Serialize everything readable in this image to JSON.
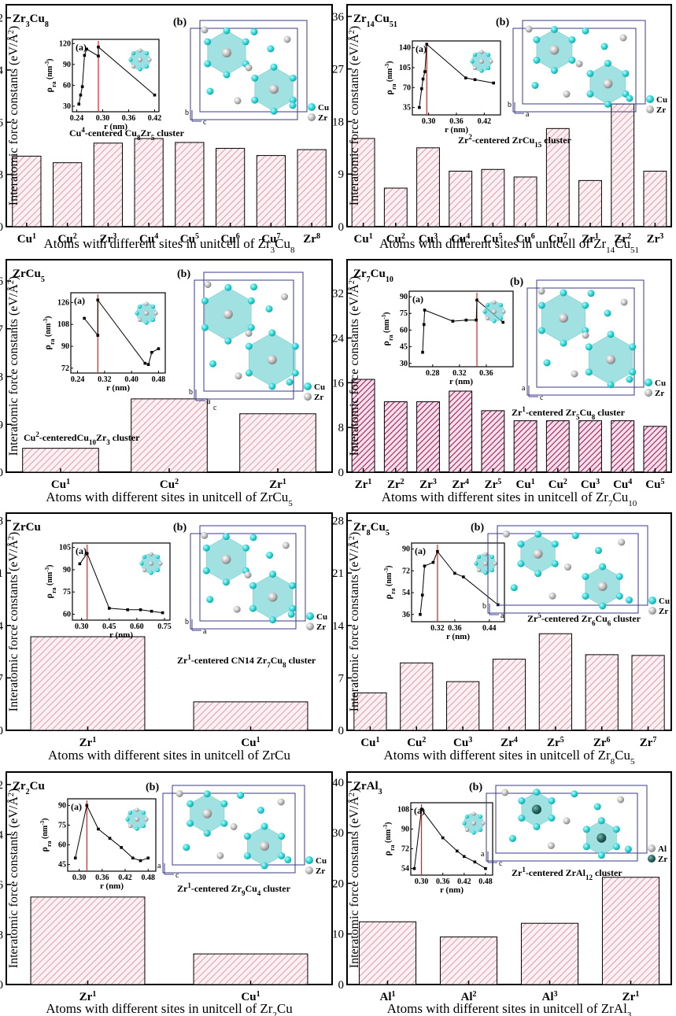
{
  "chart_data": [
    {
      "type": "bar",
      "compound_label": [
        "Zr",
        "3",
        "Cu",
        "8"
      ],
      "categories": [
        [
          "Cu",
          "1"
        ],
        [
          "Cu",
          "2"
        ],
        [
          "Zr",
          "3"
        ],
        [
          "Cu",
          "4"
        ],
        [
          "Cu",
          "5"
        ],
        [
          "Cu",
          "6"
        ],
        [
          "Cu",
          "7"
        ],
        [
          "Zr",
          "8"
        ]
      ],
      "values": [
        10.8,
        9.8,
        12.8,
        13.5,
        12.9,
        12.0,
        10.9,
        11.8
      ],
      "ylim": [
        0,
        34
      ],
      "yticks": [
        0,
        8,
        16,
        24,
        32
      ],
      "xlabel": [
        "Atoms with different sites in unitcell of Zr",
        "3",
        "Cu",
        "8"
      ],
      "bar_style": "light",
      "inset": {
        "label": "(a)",
        "xlabel": "r (nm)",
        "xticks": [
          0.24,
          0.3,
          0.36,
          0.42
        ],
        "xlim": [
          0.23,
          0.43
        ],
        "yticks": [
          30,
          60,
          90,
          120
        ],
        "ylim": [
          22,
          126
        ],
        "redline": 0.29,
        "points": [
          [
            0.245,
            33
          ],
          [
            0.249,
            46
          ],
          [
            0.253,
            58
          ],
          [
            0.258,
            103
          ],
          [
            0.263,
            112
          ],
          [
            0.29,
            102
          ],
          [
            0.29,
            115
          ],
          [
            0.42,
            46
          ]
        ]
      },
      "structure": {
        "label": "(b)",
        "axes": [
          "b",
          "c"
        ],
        "legend": [
          "Cu",
          "Zr"
        ]
      },
      "cluster_label": [
        "Cu",
        "4",
        "-centered Cu",
        "8",
        "Zr",
        "5",
        " cluster"
      ]
    },
    {
      "type": "bar",
      "compound_label": [
        "Zr",
        "14",
        "Cu",
        "51"
      ],
      "categories": [
        [
          "Cu",
          "1"
        ],
        [
          "Cu",
          "2"
        ],
        [
          "Cu",
          "3"
        ],
        [
          "Cu",
          "4"
        ],
        [
          "Cu",
          "5"
        ],
        [
          "Cu",
          "6"
        ],
        [
          "Cu",
          "7"
        ],
        [
          "Zr",
          "1"
        ],
        [
          "Zr",
          "2"
        ],
        [
          "Zr",
          "3"
        ]
      ],
      "values": [
        15.1,
        6.6,
        13.5,
        9.5,
        9.8,
        8.5,
        16.8,
        7.9,
        21.0,
        9.5
      ],
      "ylim": [
        0,
        38
      ],
      "yticks": [
        0,
        9,
        18,
        27,
        36
      ],
      "xlabel": [
        "Atoms with different sites in unitcell of Zr",
        "14",
        "Cu",
        "51"
      ],
      "bar_style": "light",
      "inset": {
        "label": "(a)",
        "xlabel": "r (nm)",
        "xticks": [
          0.3,
          0.36,
          0.42
        ],
        "xlim": [
          0.265,
          0.455
        ],
        "yticks": [
          35,
          70,
          105,
          140
        ],
        "ylim": [
          22,
          152
        ],
        "redline": 0.296,
        "points": [
          [
            0.28,
            35
          ],
          [
            0.285,
            68
          ],
          [
            0.288,
            85
          ],
          [
            0.292,
            98
          ],
          [
            0.296,
            146
          ],
          [
            0.38,
            87
          ],
          [
            0.4,
            84
          ],
          [
            0.44,
            78
          ]
        ]
      },
      "structure": {
        "label": "(b)",
        "axes": [
          "b",
          "a"
        ],
        "legend": [
          "Cu",
          "Zr"
        ]
      },
      "cluster_label": [
        "Zr",
        "2",
        "-centered ZrCu",
        "15",
        " cluster"
      ]
    },
    {
      "type": "bar",
      "compound_label": [
        "ZrCu",
        "5"
      ],
      "categories": [
        [
          "Cu",
          "1"
        ],
        [
          "Cu",
          "2"
        ],
        [
          "Zr",
          "1"
        ]
      ],
      "values": [
        4.5,
        13.8,
        11.0
      ],
      "ylim": [
        0,
        40
      ],
      "yticks": [
        0,
        9,
        18,
        27,
        36
      ],
      "xlabel": [
        "Atoms with different sites in unitcell of ZrCu",
        "5"
      ],
      "bar_style": "light",
      "inset": {
        "label": "(a)",
        "xlabel": "r (nm)",
        "xticks": [
          0.24,
          0.32,
          0.4,
          0.48
        ],
        "xlim": [
          0.22,
          0.5
        ],
        "yticks": [
          72,
          90,
          108,
          126
        ],
        "ylim": [
          68,
          134
        ],
        "redline": 0.3,
        "points": [
          [
            0.26,
            113
          ],
          [
            0.3,
            99
          ],
          [
            0.3,
            128
          ],
          [
            0.44,
            76
          ],
          [
            0.45,
            75
          ],
          [
            0.46,
            85
          ],
          [
            0.48,
            88
          ]
        ]
      },
      "structure": {
        "label": "(b)",
        "axes": [
          "b",
          "a",
          "c"
        ],
        "legend": [
          "Cu",
          "Zr"
        ]
      },
      "cluster_label": [
        "Cu",
        "2",
        "-centeredCu",
        "10",
        "Zr",
        "3",
        " cluster"
      ]
    },
    {
      "type": "bar",
      "compound_label": [
        "Zr",
        "7",
        "Cu",
        "10"
      ],
      "categories": [
        [
          "Zr",
          "1"
        ],
        [
          "Zr",
          "2"
        ],
        [
          "Zr",
          "3"
        ],
        [
          "Zr",
          "4"
        ],
        [
          "Zr",
          "5"
        ],
        [
          "Cu",
          "1"
        ],
        [
          "Cu",
          "2"
        ],
        [
          "Cu",
          "3"
        ],
        [
          "Cu",
          "4"
        ],
        [
          "Cu",
          "5"
        ]
      ],
      "values": [
        16.6,
        12.6,
        12.6,
        14.5,
        11.0,
        9.2,
        9.2,
        9.2,
        9.2,
        8.2
      ],
      "ylim": [
        0,
        38
      ],
      "yticks": [
        0,
        8,
        16,
        24,
        32
      ],
      "xlabel": [
        "Atoms with different sites in unitcell of Zr",
        "7",
        "Cu",
        "10"
      ],
      "bar_style": "dark",
      "inset": {
        "label": "(a)",
        "xlabel": "r (nm)",
        "xticks": [
          0.28,
          0.32,
          0.36
        ],
        "xlim": [
          0.245,
          0.4
        ],
        "yticks": [
          30,
          45,
          60,
          75,
          90
        ],
        "ylim": [
          27,
          95
        ],
        "redline": 0.346,
        "points": [
          [
            0.265,
            40
          ],
          [
            0.267,
            65
          ],
          [
            0.268,
            78
          ],
          [
            0.31,
            68
          ],
          [
            0.33,
            69
          ],
          [
            0.345,
            69
          ],
          [
            0.346,
            87
          ],
          [
            0.385,
            67
          ]
        ]
      },
      "structure": {
        "label": "(b)",
        "axes": [
          "a",
          "c"
        ],
        "legend": [
          "Cu",
          "Zr"
        ]
      },
      "cluster_label": [
        "Zr",
        "1",
        "-centered Zr",
        "5",
        "Cu",
        "8",
        " cluster"
      ]
    },
    {
      "type": "bar",
      "compound_label": [
        "ZrCu"
      ],
      "categories": [
        [
          "Zr",
          "1"
        ],
        [
          "Cu",
          "1"
        ]
      ],
      "values": [
        12.5,
        3.8
      ],
      "ylim": [
        0,
        29
      ],
      "yticks": [
        0,
        7,
        14,
        21,
        28
      ],
      "xlabel": [
        "Atoms with different sites in unitcell of ZrCu"
      ],
      "bar_style": "light",
      "inset": {
        "label": "(a)",
        "xlabel": "r (nm)",
        "xticks": [
          0.3,
          0.45,
          0.6,
          0.75
        ],
        "xlim": [
          0.25,
          0.78
        ],
        "yticks": [
          60,
          75,
          90,
          105
        ],
        "ylim": [
          56,
          108
        ],
        "redline": 0.33,
        "points": [
          [
            0.29,
            94
          ],
          [
            0.33,
            101
          ],
          [
            0.45,
            64
          ],
          [
            0.55,
            63
          ],
          [
            0.62,
            63
          ],
          [
            0.68,
            62
          ],
          [
            0.74,
            61
          ]
        ]
      },
      "structure": {
        "label": "(b)",
        "axes": [
          "b",
          "a"
        ],
        "legend": [
          "Cu",
          "Zr"
        ]
      },
      "cluster_label": [
        "Zr",
        "1",
        "-centered CN14 Zr",
        "7",
        "Cu",
        "8",
        " cluster"
      ]
    },
    {
      "type": "bar",
      "compound_label": [
        "Zr",
        "8",
        "Cu",
        "5"
      ],
      "categories": [
        [
          "Cu",
          "1"
        ],
        [
          "Cu",
          "2"
        ],
        [
          "Cu",
          "3"
        ],
        [
          "Zr",
          "4"
        ],
        [
          "Zr",
          "5"
        ],
        [
          "Zr",
          "6"
        ],
        [
          "Zr",
          "7"
        ]
      ],
      "values": [
        5.0,
        9.0,
        6.5,
        9.5,
        12.9,
        10.1,
        10.0
      ],
      "ylim": [
        0,
        29
      ],
      "yticks": [
        0,
        7,
        14,
        21,
        28
      ],
      "xlabel": [
        "Atoms with different sites in unitcell of Zr",
        "8",
        "Cu",
        "5"
      ],
      "bar_style": "light",
      "inset": {
        "label": "(a)",
        "xlabel": "r (nm)",
        "xticks": [
          0.32,
          0.36,
          0.44
        ],
        "xlim": [
          0.26,
          0.475
        ],
        "yticks": [
          36,
          54,
          72,
          90
        ],
        "ylim": [
          30,
          95
        ],
        "redline": 0.32,
        "points": [
          [
            0.28,
            36
          ],
          [
            0.285,
            52
          ],
          [
            0.29,
            76
          ],
          [
            0.31,
            79
          ],
          [
            0.32,
            88
          ],
          [
            0.36,
            70
          ],
          [
            0.38,
            67
          ],
          [
            0.46,
            44
          ]
        ]
      },
      "structure": {
        "label": "(b)",
        "axes": [
          "b",
          "a"
        ],
        "legend": [
          "Cu",
          "Zr"
        ]
      },
      "cluster_label": [
        "Zr",
        "5",
        "-centered Zr",
        "6",
        "Cu",
        "6",
        " cluster"
      ]
    },
    {
      "type": "bar",
      "compound_label": [
        "Zr",
        "2",
        "Cu"
      ],
      "categories": [
        [
          "Zr",
          "1"
        ],
        [
          "Cu",
          "1"
        ]
      ],
      "values": [
        14.0,
        4.9
      ],
      "ylim": [
        0,
        34
      ],
      "yticks": [
        0,
        8,
        16,
        24,
        32
      ],
      "xlabel": [
        "Atoms with different sites in unitcell of Zr",
        "2",
        "Cu"
      ],
      "bar_style": "light",
      "inset": {
        "label": "(a)",
        "xlabel": "r (nm)",
        "xticks": [
          0.3,
          0.36,
          0.42,
          0.48
        ],
        "xlim": [
          0.27,
          0.5
        ],
        "yticks": [
          45,
          60,
          75,
          90
        ],
        "ylim": [
          40,
          95
        ],
        "redline": 0.32,
        "points": [
          [
            0.29,
            50
          ],
          [
            0.32,
            90
          ],
          [
            0.35,
            72
          ],
          [
            0.38,
            65
          ],
          [
            0.41,
            58
          ],
          [
            0.44,
            50
          ],
          [
            0.46,
            48
          ],
          [
            0.48,
            50
          ]
        ]
      },
      "structure": {
        "label": "(b)",
        "axes": [
          "a",
          "c"
        ],
        "legend": [
          "Cu",
          "Zr"
        ]
      },
      "cluster_label": [
        "Zr",
        "1",
        "-centered Zr",
        "9",
        "Cu",
        "4",
        " cluster"
      ]
    },
    {
      "type": "bar",
      "compound_label": [
        "ZrAl",
        "3"
      ],
      "categories": [
        [
          "Al",
          "1"
        ],
        [
          "Al",
          "2"
        ],
        [
          "Al",
          "3"
        ],
        [
          "Zr",
          "1"
        ]
      ],
      "values": [
        12.4,
        9.4,
        12.1,
        21.2
      ],
      "ylim": [
        0,
        42
      ],
      "yticks": [
        0,
        10,
        20,
        30,
        40
      ],
      "xlabel": [
        "Atoms with different sites in unitcell of ZrAl",
        "3"
      ],
      "bar_style": "light",
      "inset": {
        "label": "(a)",
        "xlabel": "r (nm)",
        "xticks": [
          0.3,
          0.36,
          0.42,
          0.48
        ],
        "xlim": [
          0.27,
          0.5
        ],
        "yticks": [
          54,
          72,
          90,
          108
        ],
        "ylim": [
          48,
          114
        ],
        "redline": 0.3,
        "points": [
          [
            0.28,
            54
          ],
          [
            0.3,
            108
          ],
          [
            0.36,
            82
          ],
          [
            0.4,
            70
          ],
          [
            0.42,
            65
          ],
          [
            0.45,
            60
          ],
          [
            0.48,
            54
          ]
        ]
      },
      "structure": {
        "label": "(b)",
        "axes": [
          "a",
          "c"
        ],
        "legend": [
          "Al",
          "Zr"
        ]
      },
      "cluster_label": [
        "Zr",
        "1",
        "-centered ZrAl",
        "12",
        " cluster"
      ]
    }
  ],
  "ylabel": [
    "Interatomic force constants (eV/Å",
    "2",
    ")"
  ],
  "colors": {
    "bar_hatch_light": "#d4869b",
    "bar_hatch_dark": "#a0205e",
    "bar_border": "#000000",
    "bar_fill": "#fdf0f3",
    "redline": "#e02020",
    "cu_atom": "#2fd6d6",
    "zr_atom": "#b4b4b4",
    "al_atom": "#c4c4c4",
    "zr_dark": "#2a6a62",
    "polyhedron": "#6fd2d4",
    "cell_edge": "#3a3a8a"
  }
}
